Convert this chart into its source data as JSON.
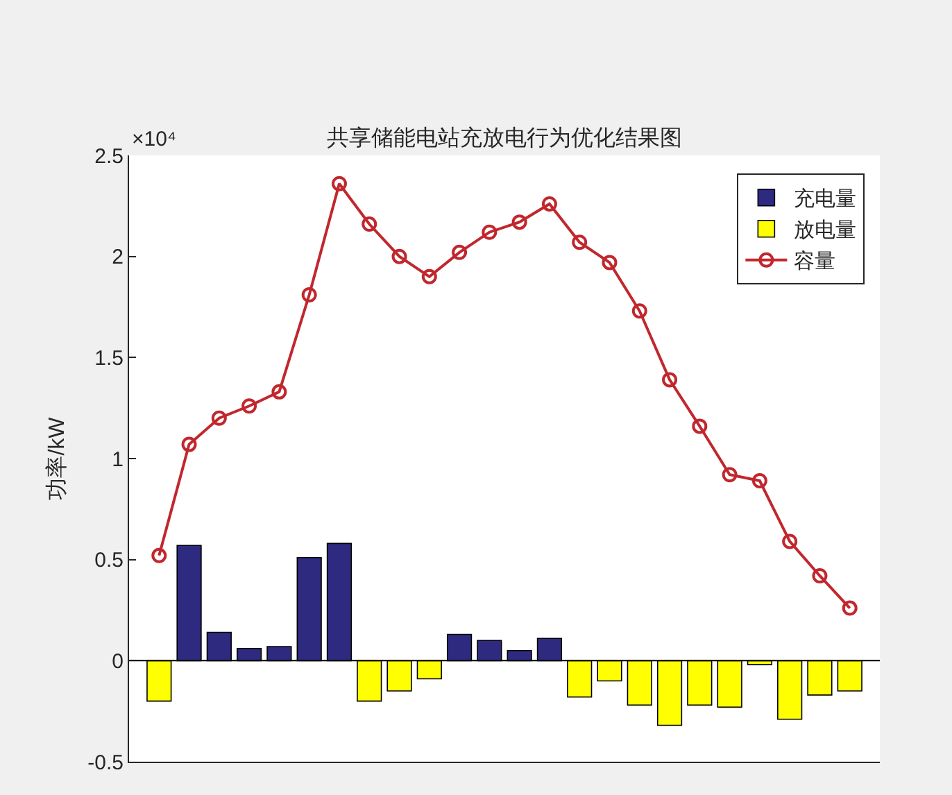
{
  "chart_data": {
    "type": "bar",
    "title": "共享储能电站充放电行为优化结果图",
    "ylabel": "功率/kW",
    "annotations": [
      "×10⁴"
    ],
    "categories": [
      null,
      null,
      null,
      null,
      null,
      null,
      null,
      null,
      null,
      null,
      null,
      null,
      null,
      null,
      null,
      null,
      null,
      null,
      null,
      null,
      null,
      null,
      null,
      null
    ],
    "stacked": true,
    "series": [
      {
        "name": "充电量",
        "color": "#2e2a80",
        "values": [
          null,
          0.57,
          0.14,
          0.06,
          0.07,
          0.51,
          0.58,
          null,
          null,
          null,
          0.13,
          0.1,
          0.05,
          0.11,
          null,
          null,
          null,
          null,
          null,
          null,
          null,
          null,
          null,
          null
        ]
      },
      {
        "name": "放电量",
        "color": "#ffff00",
        "values": [
          -0.2,
          null,
          null,
          null,
          null,
          null,
          null,
          -0.2,
          -0.15,
          -0.09,
          null,
          null,
          null,
          null,
          -0.18,
          -0.1,
          -0.22,
          -0.32,
          -0.22,
          -0.23,
          -0.02,
          -0.29,
          -0.17,
          -0.15
        ]
      },
      {
        "name": "容量",
        "type": "line",
        "color": "#c1272d",
        "marker": "circle",
        "values": [
          0.52,
          1.07,
          1.2,
          1.26,
          1.33,
          1.81,
          2.36,
          2.16,
          2.0,
          1.9,
          2.02,
          2.12,
          2.17,
          2.26,
          2.07,
          1.97,
          1.73,
          1.39,
          1.16,
          0.92,
          0.89,
          0.59,
          0.42,
          0.26
        ]
      }
    ],
    "ylim": [
      -0.5,
      2.5
    ],
    "yticks": [
      -0.5,
      0,
      0.5,
      1,
      1.5,
      2,
      2.5
    ],
    "tick_labels": "y",
    "grid": false,
    "legend": "top right",
    "ref_lines": [
      {
        "axis": "y",
        "value": 0,
        "color": "#000000"
      }
    ]
  }
}
